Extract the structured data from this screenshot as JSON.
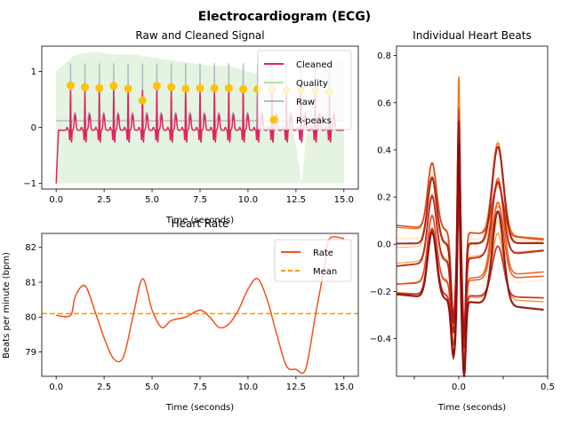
{
  "figure_title": "Electrocardiogram (ECG)",
  "chart_data": [
    {
      "type": "line",
      "title": "Raw and Cleaned Signal",
      "xlabel": "Time (seconds)",
      "ylabel": "",
      "xlim": [
        -0.75,
        15.75
      ],
      "ylim": [
        -1.1,
        1.45
      ],
      "xticks": [
        0,
        2.5,
        5,
        7.5,
        10,
        12.5,
        15
      ],
      "xtick_labels": [
        "0.0",
        "2.5",
        "5.0",
        "7.5",
        "10.0",
        "12.5",
        "15.0"
      ],
      "yticks": [
        -1,
        0,
        1
      ],
      "ytick_labels": [
        "−1",
        "0",
        "1"
      ],
      "legend_position": "top-right",
      "series": [
        {
          "name": "Cleaned",
          "color": "#e0245e"
        },
        {
          "name": "Quality",
          "color": "#b3dfa8"
        },
        {
          "name": "Raw",
          "color": "#b0bec5"
        },
        {
          "name": "R-peaks",
          "color": "#ffc107"
        }
      ],
      "rpeaks": {
        "x": [
          0.75,
          1.5,
          2.25,
          3.0,
          3.75,
          4.5,
          5.25,
          6.0,
          6.75,
          7.5,
          8.25,
          9.0,
          9.75,
          10.5,
          11.25,
          12.0,
          12.75,
          13.5,
          14.25
        ],
        "y": [
          0.75,
          0.72,
          0.7,
          0.74,
          0.69,
          0.48,
          0.74,
          0.72,
          0.69,
          0.7,
          0.7,
          0.7,
          0.68,
          0.68,
          0.67,
          0.66,
          0.66,
          0.65,
          0.64
        ]
      },
      "quality": {
        "x": [
          0,
          1,
          2,
          3,
          4,
          5,
          6,
          7,
          8,
          9,
          10,
          11,
          12,
          12.5,
          12.8,
          13.2,
          14,
          15
        ],
        "y": [
          1.0,
          1.3,
          1.35,
          1.3,
          1.3,
          1.25,
          1.2,
          1.15,
          1.1,
          1.1,
          1.0,
          0.9,
          0.6,
          -0.3,
          -1.0,
          0.4,
          1.1,
          1.2
        ]
      }
    },
    {
      "type": "line",
      "title": "Heart Rate",
      "xlabel": "Time (seconds)",
      "ylabel": "Beats per minute (bpm)",
      "xlim": [
        -0.75,
        15.75
      ],
      "ylim": [
        78.3,
        82.4
      ],
      "xticks": [
        0,
        2.5,
        5,
        7.5,
        10,
        12.5,
        15
      ],
      "xtick_labels": [
        "0.0",
        "2.5",
        "5.0",
        "7.5",
        "10.0",
        "12.5",
        "15.0"
      ],
      "yticks": [
        79,
        80,
        81,
        82
      ],
      "ytick_labels": [
        "79",
        "80",
        "81",
        "82"
      ],
      "legend_position": "top-right",
      "series": [
        {
          "name": "Rate",
          "color": "#f4511e",
          "x": [
            0,
            0.75,
            1.0,
            1.5,
            2.0,
            2.5,
            3.0,
            3.5,
            4.0,
            4.5,
            5.0,
            5.5,
            6.0,
            6.75,
            7.5,
            8.0,
            8.5,
            9.0,
            9.5,
            10.0,
            10.5,
            11.0,
            11.5,
            12.0,
            12.5,
            13.0,
            13.5,
            14.0,
            14.25,
            15.0
          ],
          "y": [
            80.05,
            80.05,
            80.6,
            80.9,
            80.2,
            79.4,
            78.8,
            78.85,
            80.0,
            81.1,
            80.2,
            79.7,
            79.9,
            80.0,
            80.2,
            80.0,
            79.7,
            79.8,
            80.2,
            80.8,
            81.1,
            80.5,
            79.5,
            78.6,
            78.5,
            78.5,
            80.0,
            81.5,
            82.25,
            82.25
          ]
        },
        {
          "name": "Mean",
          "color": "#ff9800",
          "x": [
            -0.75,
            15.75
          ],
          "y": [
            80.1,
            80.1
          ]
        }
      ]
    },
    {
      "type": "line",
      "title": "Individual Heart Beats",
      "xlabel": "Time (seconds)",
      "ylabel": "",
      "xlim": [
        -0.35,
        0.5
      ],
      "ylim": [
        -0.56,
        0.84
      ],
      "xticks": [
        -0.25,
        0.0,
        0.25,
        0.5
      ],
      "xtick_labels": [
        "",
        "0.0",
        "",
        "0.5"
      ],
      "yticks": [
        -0.4,
        -0.2,
        0.0,
        0.2,
        0.4,
        0.6,
        0.8
      ],
      "ytick_labels": [
        "−0.4",
        "−0.2",
        "0.0",
        "0.2",
        "0.4",
        "0.6",
        "0.8"
      ],
      "beat_colors": [
        "#ffe082",
        "#ffcc80",
        "#ffb74d",
        "#ffa726",
        "#fb8c00",
        "#f57c00",
        "#ef6c00",
        "#e65100",
        "#e64a19",
        "#d84315",
        "#c62828",
        "#b71c1c",
        "#a31516",
        "#8b0a0a"
      ]
    }
  ]
}
